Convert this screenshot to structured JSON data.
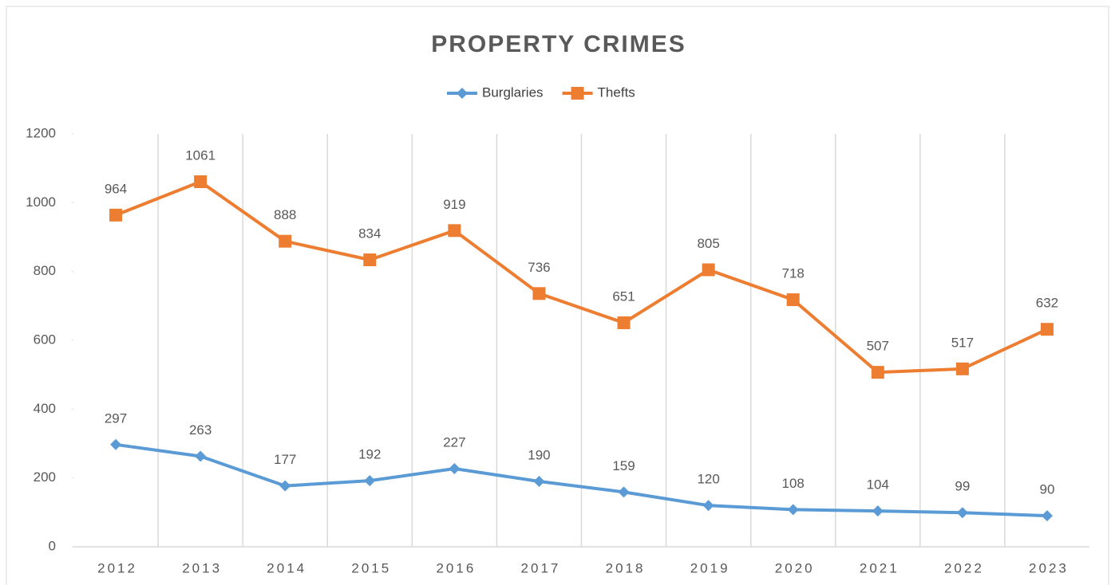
{
  "chart_data": {
    "type": "line",
    "title": "PROPERTY CRIMES",
    "categories": [
      "2012",
      "2013",
      "2014",
      "2015",
      "2016",
      "2017",
      "2018",
      "2019",
      "2020",
      "2021",
      "2022",
      "2023"
    ],
    "series": [
      {
        "name": "Burglaries",
        "color": "#5b9bd5",
        "marker": "diamond",
        "values": [
          297,
          263,
          177,
          192,
          227,
          190,
          159,
          120,
          108,
          104,
          99,
          90
        ]
      },
      {
        "name": "Thefts",
        "color": "#ed7d31",
        "marker": "square",
        "values": [
          964,
          1061,
          888,
          834,
          919,
          736,
          651,
          805,
          718,
          507,
          517,
          632
        ]
      }
    ],
    "ylim": [
      0,
      1200
    ],
    "yticks": [
      0,
      200,
      400,
      600,
      800,
      1000,
      1200
    ],
    "grid": "vertical",
    "legend": "top"
  }
}
